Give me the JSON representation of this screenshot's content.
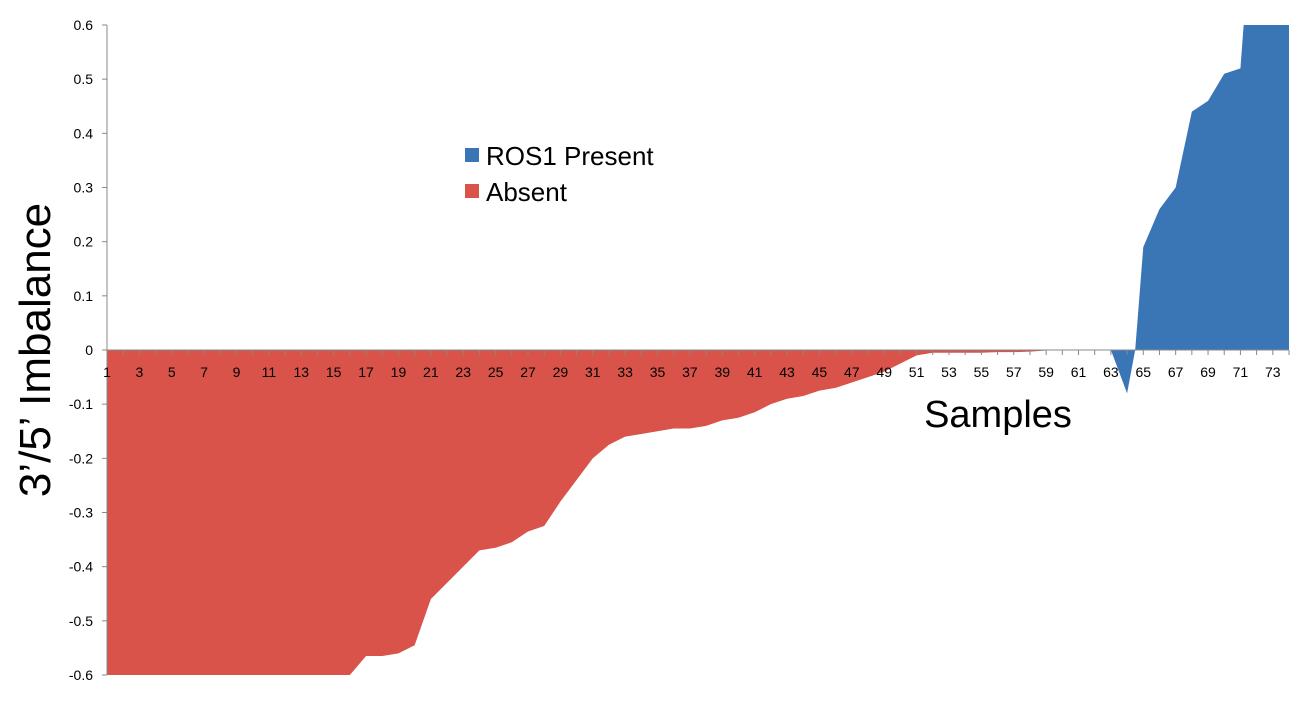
{
  "chart_data": {
    "type": "area",
    "xlabel": "Samples",
    "ylabel": "3’/5’ Imbalance",
    "ylim": [
      -0.6,
      0.6
    ],
    "yticks": [
      0.6,
      0.5,
      0.4,
      0.3,
      0.2,
      0.1,
      0,
      -0.1,
      -0.2,
      -0.3,
      -0.4,
      -0.5,
      -0.6
    ],
    "ytick_labels": [
      "0.6",
      "0.5",
      "0.4",
      "0.3",
      "0.2",
      "0.1",
      "0",
      "-0.1",
      "-0.2",
      "-0.3",
      "-0.4",
      "-0.5",
      "-0.6"
    ],
    "xlim": [
      1,
      74
    ],
    "xtick_labels": [
      "1",
      "3",
      "5",
      "7",
      "9",
      "11",
      "13",
      "15",
      "17",
      "19",
      "21",
      "23",
      "25",
      "27",
      "29",
      "31",
      "33",
      "35",
      "37",
      "39",
      "41",
      "43",
      "45",
      "47",
      "49",
      "51",
      "53",
      "55",
      "57",
      "59",
      "61",
      "63",
      "65",
      "67",
      "69",
      "71",
      "73"
    ],
    "legend_position": "upper-center",
    "grid": false,
    "series": [
      {
        "name": "ROS1 Present",
        "color": "#3a76b5",
        "x": [
          63,
          64,
          64.5,
          65,
          66,
          67,
          68,
          69,
          70,
          71,
          71.2,
          72,
          73,
          74
        ],
        "y": [
          0,
          -0.08,
          0,
          0.19,
          0.26,
          0.3,
          0.44,
          0.46,
          0.51,
          0.52,
          0.6,
          0.6,
          0.6,
          0.6
        ]
      },
      {
        "name": "Absent",
        "color": "#d9534a",
        "x": [
          1,
          2,
          3,
          4,
          5,
          6,
          7,
          8,
          9,
          10,
          11,
          12,
          13,
          14,
          15,
          16,
          17,
          18,
          19,
          20,
          21,
          22,
          23,
          24,
          25,
          26,
          27,
          28,
          29,
          30,
          31,
          32,
          33,
          34,
          35,
          36,
          37,
          38,
          39,
          40,
          41,
          42,
          43,
          44,
          45,
          46,
          47,
          48,
          49,
          50,
          51,
          52,
          53,
          54,
          55,
          56,
          57,
          58,
          59,
          60,
          61,
          62,
          63
        ],
        "y": [
          -0.6,
          -0.6,
          -0.6,
          -0.6,
          -0.6,
          -0.6,
          -0.6,
          -0.6,
          -0.6,
          -0.6,
          -0.6,
          -0.6,
          -0.6,
          -0.6,
          -0.6,
          -0.6,
          -0.565,
          -0.565,
          -0.56,
          -0.545,
          -0.46,
          -0.43,
          -0.4,
          -0.37,
          -0.365,
          -0.355,
          -0.335,
          -0.325,
          -0.28,
          -0.24,
          -0.2,
          -0.175,
          -0.16,
          -0.155,
          -0.15,
          -0.145,
          -0.145,
          -0.14,
          -0.13,
          -0.125,
          -0.115,
          -0.1,
          -0.09,
          -0.085,
          -0.075,
          -0.07,
          -0.06,
          -0.05,
          -0.04,
          -0.025,
          -0.01,
          -0.005,
          -0.005,
          -0.005,
          -0.005,
          -0.004,
          -0.004,
          -0.003,
          -0.001,
          0,
          0,
          0,
          0
        ]
      }
    ]
  }
}
